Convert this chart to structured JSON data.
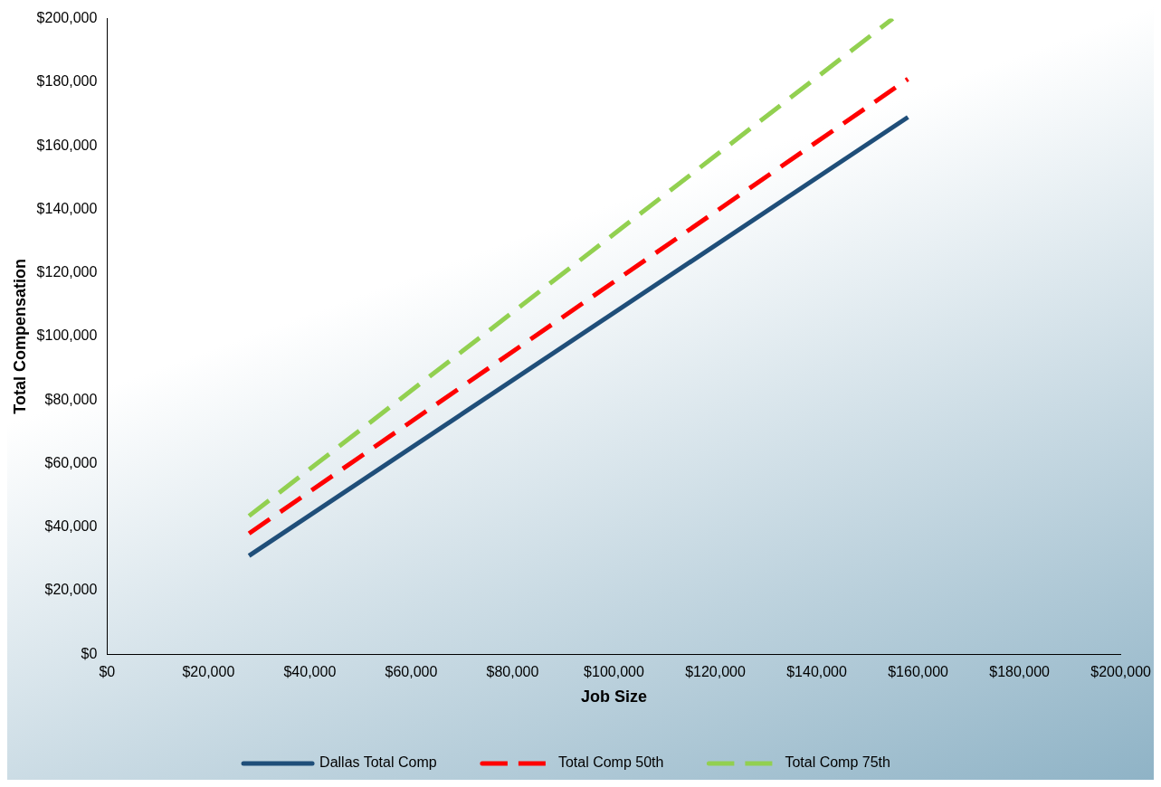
{
  "chart_data": {
    "type": "line",
    "xlabel": "Job Size",
    "ylabel": "Total Compensation",
    "xlim": [
      0,
      200000
    ],
    "xticks": [
      {
        "value": 0,
        "label": "$0"
      },
      {
        "value": 20000,
        "label": "$20,000"
      },
      {
        "value": 40000,
        "label": "$40,000"
      },
      {
        "value": 60000,
        "label": "$60,000"
      },
      {
        "value": 80000,
        "label": "$80,000"
      },
      {
        "value": 100000,
        "label": "$100,000"
      },
      {
        "value": 120000,
        "label": "$120,000"
      },
      {
        "value": 140000,
        "label": "$140,000"
      },
      {
        "value": 160000,
        "label": "$160,000"
      },
      {
        "value": 180000,
        "label": "$180,000"
      },
      {
        "value": 200000,
        "label": "$200,000"
      }
    ],
    "ylim": [
      0,
      200000
    ],
    "yticks": [
      {
        "value": 0,
        "label": "$0"
      },
      {
        "value": 20000,
        "label": "$20,000"
      },
      {
        "value": 40000,
        "label": "$40,000"
      },
      {
        "value": 60000,
        "label": "$60,000"
      },
      {
        "value": 80000,
        "label": "$80,000"
      },
      {
        "value": 100000,
        "label": "$100,000"
      },
      {
        "value": 120000,
        "label": "$120,000"
      },
      {
        "value": 140000,
        "label": "$140,000"
      },
      {
        "value": 160000,
        "label": "$160,000"
      },
      {
        "value": 180000,
        "label": "$180,000"
      },
      {
        "value": 200000,
        "label": "$200,000"
      }
    ],
    "grid": false,
    "legend": "bottom",
    "marker": "none",
    "series": [
      {
        "name": "Dallas Total Comp",
        "color": "#1f4e79",
        "line_style": "solid",
        "x": [
          28000,
          158000
        ],
        "values": [
          31000,
          169000
        ]
      },
      {
        "name": "Total Comp 50th",
        "color": "#ff0000",
        "line_style": "dashed",
        "x": [
          28000,
          158000
        ],
        "values": [
          38000,
          181000
        ]
      },
      {
        "name": "Total Comp 75th",
        "color": "#92d050",
        "line_style": "dashed",
        "x": [
          28000,
          155000
        ],
        "values": [
          43500,
          200000
        ]
      }
    ]
  }
}
